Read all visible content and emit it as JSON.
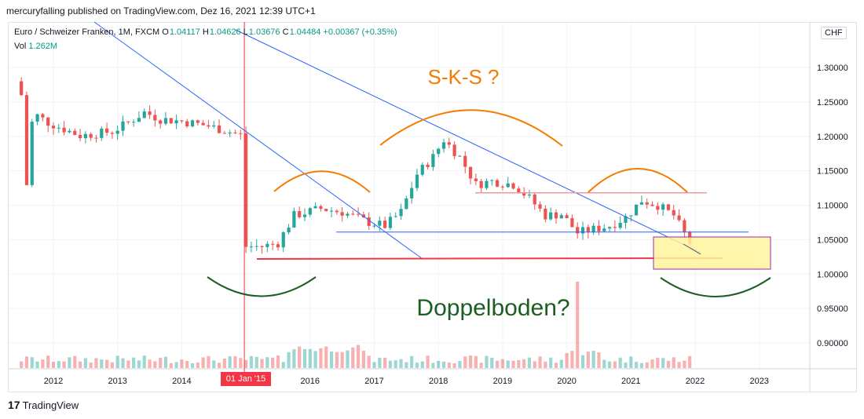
{
  "header": {
    "published": "mercuryfalling published on TradingView.com, Dez 16, 2021 12:39 UTC+1"
  },
  "legend": {
    "symbol": "Euro / Schweizer Franken, 1M, FXCM",
    "open_label": "O",
    "open": "1.04117",
    "high_label": "H",
    "high": "1.04626",
    "low_label": "L",
    "low": "1.03676",
    "close_label": "C",
    "close": "1.04484",
    "change": "+0.00367 (+0.35%)",
    "vol_label": "Vol",
    "vol": "1.262M"
  },
  "currency_button": "CHF",
  "crosshair_date": "01 Jan '15",
  "footer": {
    "logo": "17",
    "brand": "TradingView"
  },
  "colors": {
    "up": "#26a69a",
    "down": "#ef5350",
    "trend": "#2962ff",
    "support": "#f23645",
    "arc_orange": "#f57c00",
    "arc_green": "#1b5e20",
    "zone": "#fff59d"
  },
  "chart_data": {
    "type": "candlestick",
    "timeframe": "1M",
    "ylim": [
      0.86,
      1.34
    ],
    "y_ticks": [
      "1.30000",
      "1.25000",
      "1.20000",
      "1.15000",
      "1.10000",
      "1.05000",
      "1.00000",
      "0.95000",
      "0.90000"
    ],
    "x_ticks": [
      "2012",
      "2013",
      "2014",
      "2015",
      "2016",
      "2017",
      "2018",
      "2019",
      "2020",
      "2021",
      "2022",
      "2023"
    ],
    "close_path": [
      [
        "2011-07",
        1.26
      ],
      [
        "2011-08",
        1.13
      ],
      [
        "2011-09",
        1.22
      ],
      [
        "2011-10",
        1.23
      ],
      [
        "2011-12",
        1.22
      ],
      [
        "2012-06",
        1.201
      ],
      [
        "2012-12",
        1.207
      ],
      [
        "2013-03",
        1.22
      ],
      [
        "2013-06",
        1.235
      ],
      [
        "2013-09",
        1.225
      ],
      [
        "2014-01",
        1.222
      ],
      [
        "2014-06",
        1.215
      ],
      [
        "2014-12",
        1.202
      ],
      [
        "2015-01",
        1.04
      ],
      [
        "2015-04",
        1.04
      ],
      [
        "2015-07",
        1.045
      ],
      [
        "2015-10",
        1.085
      ],
      [
        "2016-03",
        1.095
      ],
      [
        "2016-07",
        1.09
      ],
      [
        "2016-12",
        1.075
      ],
      [
        "2017-03",
        1.07
      ],
      [
        "2017-06",
        1.09
      ],
      [
        "2017-09",
        1.145
      ],
      [
        "2017-12",
        1.17
      ],
      [
        "2018-02",
        1.195
      ],
      [
        "2018-05",
        1.17
      ],
      [
        "2018-08",
        1.13
      ],
      [
        "2018-11",
        1.135
      ],
      [
        "2019-03",
        1.13
      ],
      [
        "2019-06",
        1.11
      ],
      [
        "2019-09",
        1.085
      ],
      [
        "2019-12",
        1.087
      ],
      [
        "2020-03",
        1.06
      ],
      [
        "2020-06",
        1.065
      ],
      [
        "2020-09",
        1.07
      ],
      [
        "2020-12",
        1.082
      ],
      [
        "2021-03",
        1.107
      ],
      [
        "2021-06",
        1.1
      ],
      [
        "2021-09",
        1.085
      ],
      [
        "2021-12",
        1.045
      ]
    ],
    "annotations": [
      {
        "text": "S-K-S ?"
      },
      {
        "text": "Doppelboden?"
      }
    ],
    "levels": [
      {
        "name": "support",
        "value": 1.022
      },
      {
        "name": "neckline",
        "value": 1.061
      },
      {
        "name": "resistance",
        "value": 1.118
      }
    ]
  }
}
